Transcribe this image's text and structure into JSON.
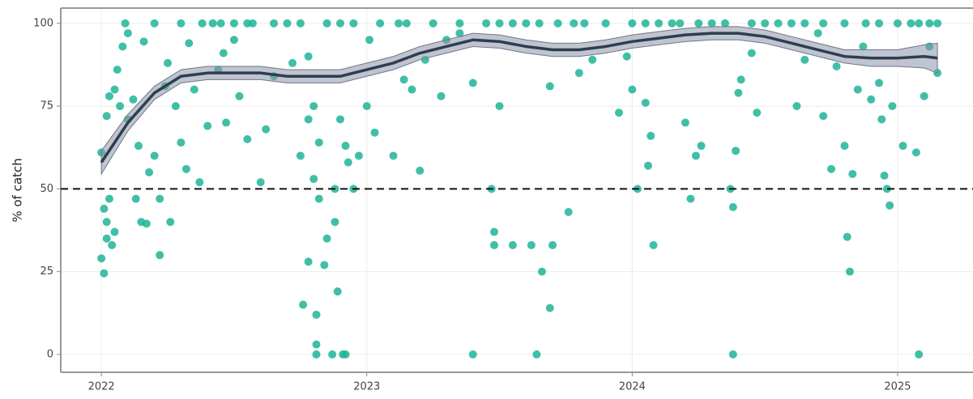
{
  "chart_data": {
    "type": "scatter",
    "y_label": "% of catch",
    "xlim": [
      2021.847,
      2025.284
    ],
    "ylim": [
      -5.4,
      104.6
    ],
    "xticks": [
      2022,
      2023,
      2024,
      2025
    ],
    "yticks": [
      0,
      25,
      50,
      75,
      100
    ],
    "grid": true,
    "hline": 50,
    "series": [
      {
        "color": "#1fb496",
        "x": [
          2022.0,
          2022.0,
          2022.01,
          2022.01,
          2022.02,
          2022.02,
          2022.03,
          2022.04,
          2022.05,
          2022.02,
          2022.03,
          2022.05,
          2022.06,
          2022.07,
          2022.08,
          2022.09,
          2022.1,
          2022.1,
          2022.12,
          2022.13,
          2022.14,
          2022.15,
          2022.16,
          2022.17,
          2022.18,
          2022.2,
          2022.2,
          2022.22,
          2022.24,
          2022.25,
          2022.26,
          2022.28,
          2022.3,
          2022.3,
          2022.32,
          2022.33,
          2022.35,
          2022.37,
          2022.38,
          2022.22,
          2022.4,
          2022.42,
          2022.44,
          2022.46,
          2022.47,
          2022.5,
          2022.52,
          2022.55,
          2022.57,
          2022.6,
          2022.62,
          2022.65,
          2022.7,
          2022.72,
          2022.75,
          2022.78,
          2022.8,
          2022.82,
          2022.85,
          2022.88,
          2022.9,
          2022.92,
          2022.95,
          2022.97,
          2022.78,
          2022.93,
          2022.76,
          2022.78,
          2022.81,
          2022.81,
          2022.81,
          2022.84,
          2022.85,
          2022.88,
          2022.89,
          2022.87,
          2022.91,
          2022.92,
          2022.82,
          2022.8,
          2023.0,
          2023.01,
          2023.03,
          2023.1,
          2023.12,
          2023.14,
          2023.17,
          2023.2,
          2023.22,
          2023.25,
          2023.28,
          2023.3,
          2023.35,
          2023.4,
          2023.4,
          2023.47,
          2023.48,
          2023.48,
          2023.5,
          2023.55,
          2023.6,
          2023.62,
          2023.64,
          2023.66,
          2023.7,
          2023.69,
          2023.69,
          2023.72,
          2023.76,
          2023.8,
          2023.85,
          2023.9,
          2023.95,
          2023.98,
          2024.0,
          2024.02,
          2024.05,
          2024.06,
          2024.07,
          2024.08,
          2024.1,
          2024.18,
          2024.2,
          2024.22,
          2024.24,
          2024.26,
          2024.3,
          2024.37,
          2024.38,
          2024.38,
          2024.39,
          2024.4,
          2024.41,
          2024.45,
          2024.47,
          2024.5,
          2024.6,
          2024.62,
          2024.65,
          2024.7,
          2024.72,
          2024.75,
          2024.77,
          2024.8,
          2024.81,
          2024.82,
          2024.83,
          2024.85,
          2024.87,
          2024.88,
          2024.9,
          2024.93,
          2024.94,
          2024.95,
          2024.96,
          2024.97,
          2024.98,
          2025.0,
          2025.02,
          2025.05,
          2025.07,
          2025.08,
          2025.1,
          2025.12,
          2025.15,
          2025.15,
          2022.45,
          2022.5,
          2022.55,
          2022.65,
          2022.75,
          2022.9,
          2022.95,
          2023.05,
          2023.15,
          2023.35,
          2023.45,
          2023.5,
          2023.55,
          2023.65,
          2023.78,
          2023.82,
          2024.0,
          2024.05,
          2024.15,
          2024.25,
          2024.35,
          2024.45,
          2024.55,
          2024.65,
          2024.72,
          2024.8,
          2024.93,
          2025.08,
          2025.12
        ],
        "values": [
          61,
          29,
          24.5,
          44,
          40,
          35,
          47,
          33,
          37,
          72,
          78,
          80,
          86,
          75,
          93,
          100,
          97,
          71,
          77,
          47,
          63,
          40,
          94.5,
          39.5,
          55,
          100,
          60,
          47,
          81,
          88,
          40,
          75,
          100,
          64,
          56,
          94,
          80,
          52,
          100,
          30,
          69,
          100,
          86,
          91,
          70,
          95,
          78,
          65,
          100,
          52,
          68,
          84,
          100,
          88,
          60,
          90,
          75,
          64,
          100,
          50,
          71,
          63,
          50,
          60,
          71,
          58,
          15,
          28,
          12,
          3,
          0,
          27,
          35,
          40,
          19,
          0,
          0,
          0,
          47,
          53,
          75,
          95,
          67,
          60,
          100,
          83,
          80,
          55.5,
          89,
          100,
          78,
          95,
          97,
          82,
          0,
          50,
          37,
          33,
          75,
          33,
          100,
          33,
          0,
          25,
          33,
          14,
          81,
          100,
          43,
          85,
          89,
          100,
          73,
          90,
          80,
          50,
          76,
          57,
          66,
          33,
          100,
          100,
          70,
          47,
          60,
          63,
          100,
          50,
          44.5,
          0,
          61.5,
          79,
          83,
          91,
          73,
          100,
          100,
          75,
          89,
          97,
          72,
          56,
          87,
          63,
          35.5,
          25,
          54.5,
          80,
          93,
          100,
          77,
          82,
          71,
          54,
          50,
          45,
          75,
          100,
          63,
          100,
          61,
          0,
          78,
          93,
          85,
          100,
          100,
          100,
          100,
          100,
          100,
          100,
          100,
          100,
          100,
          100,
          100,
          100,
          100,
          100,
          100,
          100,
          100,
          100,
          100,
          100,
          100,
          100,
          100,
          100,
          100,
          100,
          100,
          100,
          100
        ]
      }
    ],
    "trend": {
      "color": "#2c3e50",
      "band_color": "#8a93a6",
      "x": [
        2022.0,
        2022.1,
        2022.2,
        2022.3,
        2022.4,
        2022.5,
        2022.6,
        2022.7,
        2022.8,
        2022.9,
        2023.0,
        2023.1,
        2023.2,
        2023.3,
        2023.4,
        2023.5,
        2023.6,
        2023.7,
        2023.8,
        2023.9,
        2024.0,
        2024.1,
        2024.2,
        2024.3,
        2024.4,
        2024.5,
        2024.6,
        2024.7,
        2024.8,
        2024.9,
        2025.0,
        2025.1,
        2025.15
      ],
      "values": [
        58,
        70,
        79,
        84,
        85,
        85,
        85,
        84,
        84,
        84,
        86,
        88,
        91,
        93,
        95,
        94.5,
        93,
        92,
        92,
        93,
        94.5,
        95.5,
        96.5,
        97,
        97,
        96,
        94,
        92,
        90,
        89.5,
        89.5,
        90,
        89.5
      ],
      "lower": [
        54.5,
        67.5,
        77,
        82,
        83,
        83,
        83,
        82,
        82,
        82,
        84,
        86,
        89,
        91,
        93,
        92.5,
        91,
        90,
        90,
        91,
        92.5,
        93.5,
        94.5,
        95,
        95,
        94,
        92,
        90,
        88,
        87,
        87,
        86.5,
        85
      ],
      "upper": [
        61.5,
        72.5,
        81,
        86,
        87,
        87,
        87,
        86,
        86,
        86,
        88,
        90,
        93,
        95,
        97,
        96.5,
        95,
        94,
        94,
        95,
        96.5,
        97.5,
        98.5,
        99,
        99,
        98,
        96,
        94,
        92,
        92,
        92,
        93.5,
        94
      ]
    }
  }
}
